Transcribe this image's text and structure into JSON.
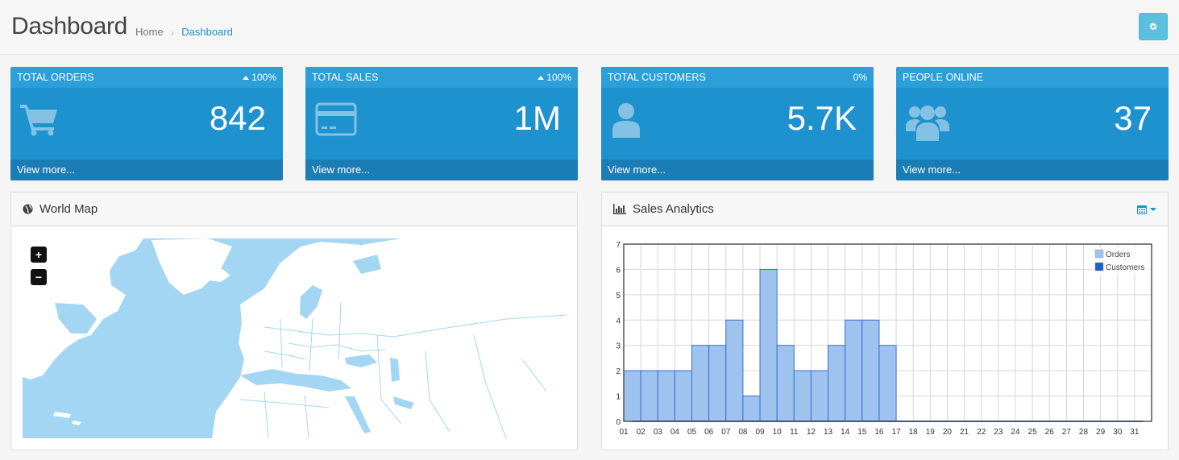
{
  "header": {
    "title": "Dashboard",
    "breadcrumb": [
      "Home",
      "Dashboard"
    ],
    "settings_icon": "gear-icon"
  },
  "tiles": [
    {
      "title": "TOTAL ORDERS",
      "percent": "100%",
      "trend": "up",
      "value": "842",
      "icon": "shopping-cart-icon",
      "footer": "View more..."
    },
    {
      "title": "TOTAL SALES",
      "percent": "100%",
      "trend": "up",
      "value": "1M",
      "icon": "credit-card-icon",
      "footer": "View more..."
    },
    {
      "title": "TOTAL CUSTOMERS",
      "percent": "0%",
      "trend": "none",
      "value": "5.7K",
      "icon": "user-icon",
      "footer": "View more..."
    },
    {
      "title": "PEOPLE ONLINE",
      "percent": "",
      "trend": "none",
      "value": "37",
      "icon": "users-icon",
      "footer": "View more..."
    }
  ],
  "world_map": {
    "title": "World Map",
    "zoom_in": "+",
    "zoom_out": "−"
  },
  "sales_analytics": {
    "title": "Sales Analytics"
  },
  "colors": {
    "tile_bg": "#1e91cf",
    "tile_heading": "#2c9fd8",
    "tile_footer": "#1b7db5",
    "map_land": "#ffffff",
    "map_water": "#a3d6f2",
    "orders_bar": "#9fc3ef",
    "customers": "#1e5fd0"
  },
  "chart_data": {
    "type": "bar",
    "categories": [
      "01",
      "02",
      "03",
      "04",
      "05",
      "06",
      "07",
      "08",
      "09",
      "10",
      "11",
      "12",
      "13",
      "14",
      "15",
      "16",
      "17",
      "18",
      "19",
      "20",
      "21",
      "22",
      "23",
      "24",
      "25",
      "26",
      "27",
      "28",
      "29",
      "30",
      "31"
    ],
    "series": [
      {
        "name": "Orders",
        "values": [
          2,
          2,
          2,
          2,
          3,
          3,
          4,
          1,
          6,
          3,
          2,
          2,
          3,
          4,
          4,
          3,
          0,
          0,
          0,
          0,
          0,
          0,
          0,
          0,
          0,
          0,
          0,
          0,
          0,
          0,
          0
        ]
      },
      {
        "name": "Customers",
        "values": [
          0,
          0,
          0,
          0,
          0,
          0,
          0,
          0,
          0,
          0,
          0,
          0,
          0,
          0,
          0,
          0,
          0,
          0,
          0,
          0,
          0,
          0,
          0,
          0,
          0,
          0,
          0,
          0,
          0,
          0,
          0
        ]
      }
    ],
    "yticks": [
      "0",
      "1",
      "2",
      "3",
      "4",
      "5",
      "6",
      "7"
    ],
    "ylim": [
      0,
      7
    ],
    "grid": true,
    "legend": "top-right"
  }
}
